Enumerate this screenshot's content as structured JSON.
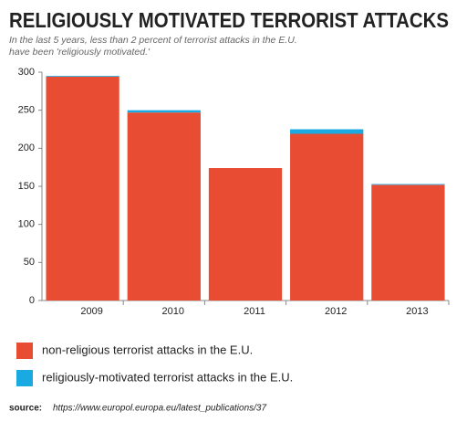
{
  "chart_data": {
    "type": "bar",
    "stacked": true,
    "title": "RELIGIOUSLY MOTIVATED TERRORIST ATTACKS",
    "subtitle": [
      "In the last 5 years, less than 2 percent of terrorist attacks in the E.U.",
      "have been 'religiously motivated.'"
    ],
    "categories": [
      "2009",
      "2010",
      "2011",
      "2012",
      "2013"
    ],
    "series": [
      {
        "name": "non-religious terrorist attacks in the E.U.",
        "color": "#e84c33",
        "values": [
          294,
          247,
          174,
          219,
          152
        ]
      },
      {
        "name": "religiously-motivated terrorist attacks in the E.U.",
        "color": "#1ba9e1",
        "values": [
          1,
          3,
          0,
          6,
          1
        ]
      }
    ],
    "ylim": [
      0,
      300
    ],
    "yticks": [
      0,
      50,
      100,
      150,
      200,
      250,
      300
    ]
  },
  "source": {
    "label": "source:",
    "url": "https://www.europol.europa.eu/latest_publications/37"
  }
}
